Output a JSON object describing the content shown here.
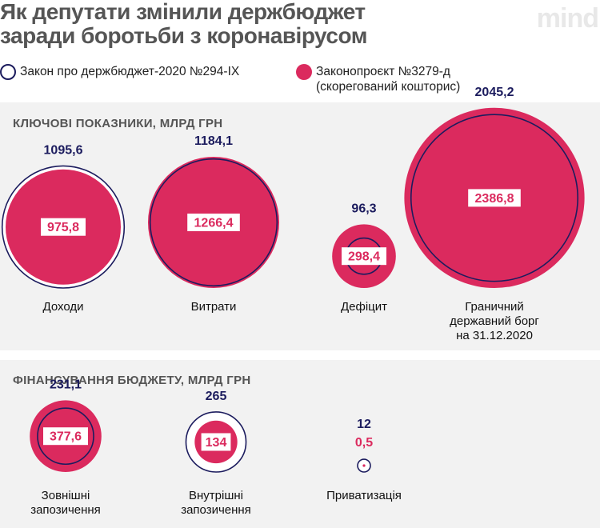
{
  "header": {
    "title_lines": [
      "Як депутати змінили держбюджет",
      "заради боротьби з коронавірусом"
    ],
    "logo": "mind"
  },
  "colors": {
    "law": "#1c1c5e",
    "draft": "#db2a5e",
    "panel_bg": "#f2f2f2",
    "text": "#111111"
  },
  "legend": [
    {
      "key": "law",
      "label_lines": [
        "Закон про держбюджет-2020 №294-IX"
      ]
    },
    {
      "key": "draft",
      "label_lines": [
        "Законопроєкт №3279-д",
        "(скорегований кошторис)"
      ]
    }
  ],
  "sections": [
    {
      "title": "КЛЮЧОВІ ПОКАЗНИКИ, МЛРД ГРН"
    },
    {
      "title": "ФІНАНСУВАННЯ БЮДЖЕТУ, МЛРД ГРН"
    }
  ],
  "chart_data": [
    {
      "type": "bubble",
      "title": "КЛЮЧОВІ ПОКАЗНИКИ, МЛРД ГРН",
      "series": [
        {
          "name": "Закон про держбюджет-2020 №294-IX",
          "key": "law"
        },
        {
          "name": "Законопроєкт №3279-д (скорегований кошторис)",
          "key": "draft"
        }
      ],
      "items": [
        {
          "label_lines": [
            "Доходи"
          ],
          "law": 1095.6,
          "draft": 975.8,
          "law_label": "1095,6",
          "draft_label": "975,8"
        },
        {
          "label_lines": [
            "Витрати"
          ],
          "law": 1184.1,
          "draft": 1266.4,
          "law_label": "1184,1",
          "draft_label": "1266,4"
        },
        {
          "label_lines": [
            "Дефіцит"
          ],
          "law": 96.3,
          "draft": 298.4,
          "law_label": "96,3",
          "draft_label": "298,4"
        },
        {
          "label_lines": [
            "Граничний",
            "державний борг",
            "на 31.12.2020"
          ],
          "law": 2045.2,
          "draft": 2386.8,
          "law_label": "2045,2",
          "draft_label": "2386,8"
        }
      ]
    },
    {
      "type": "bubble",
      "title": "ФІНАНСУВАННЯ БЮДЖЕТУ, МЛРД ГРН",
      "series": [
        {
          "name": "Закон про держбюджет-2020 №294-IX",
          "key": "law"
        },
        {
          "name": "Законопроєкт №3279-д (скорегований кошторис)",
          "key": "draft"
        }
      ],
      "items": [
        {
          "label_lines": [
            "Зовнішні",
            "запозичення"
          ],
          "law": 231.1,
          "draft": 377.6,
          "law_label": "231,1",
          "draft_label": "377,6"
        },
        {
          "label_lines": [
            "Внутрішні",
            "запозичення"
          ],
          "law": 265,
          "draft": 134,
          "law_label": "265",
          "draft_label": "134"
        },
        {
          "label_lines": [
            "Приватизація"
          ],
          "law": 12,
          "draft": 0.5,
          "law_label": "12",
          "draft_label": "0,5"
        }
      ]
    }
  ]
}
